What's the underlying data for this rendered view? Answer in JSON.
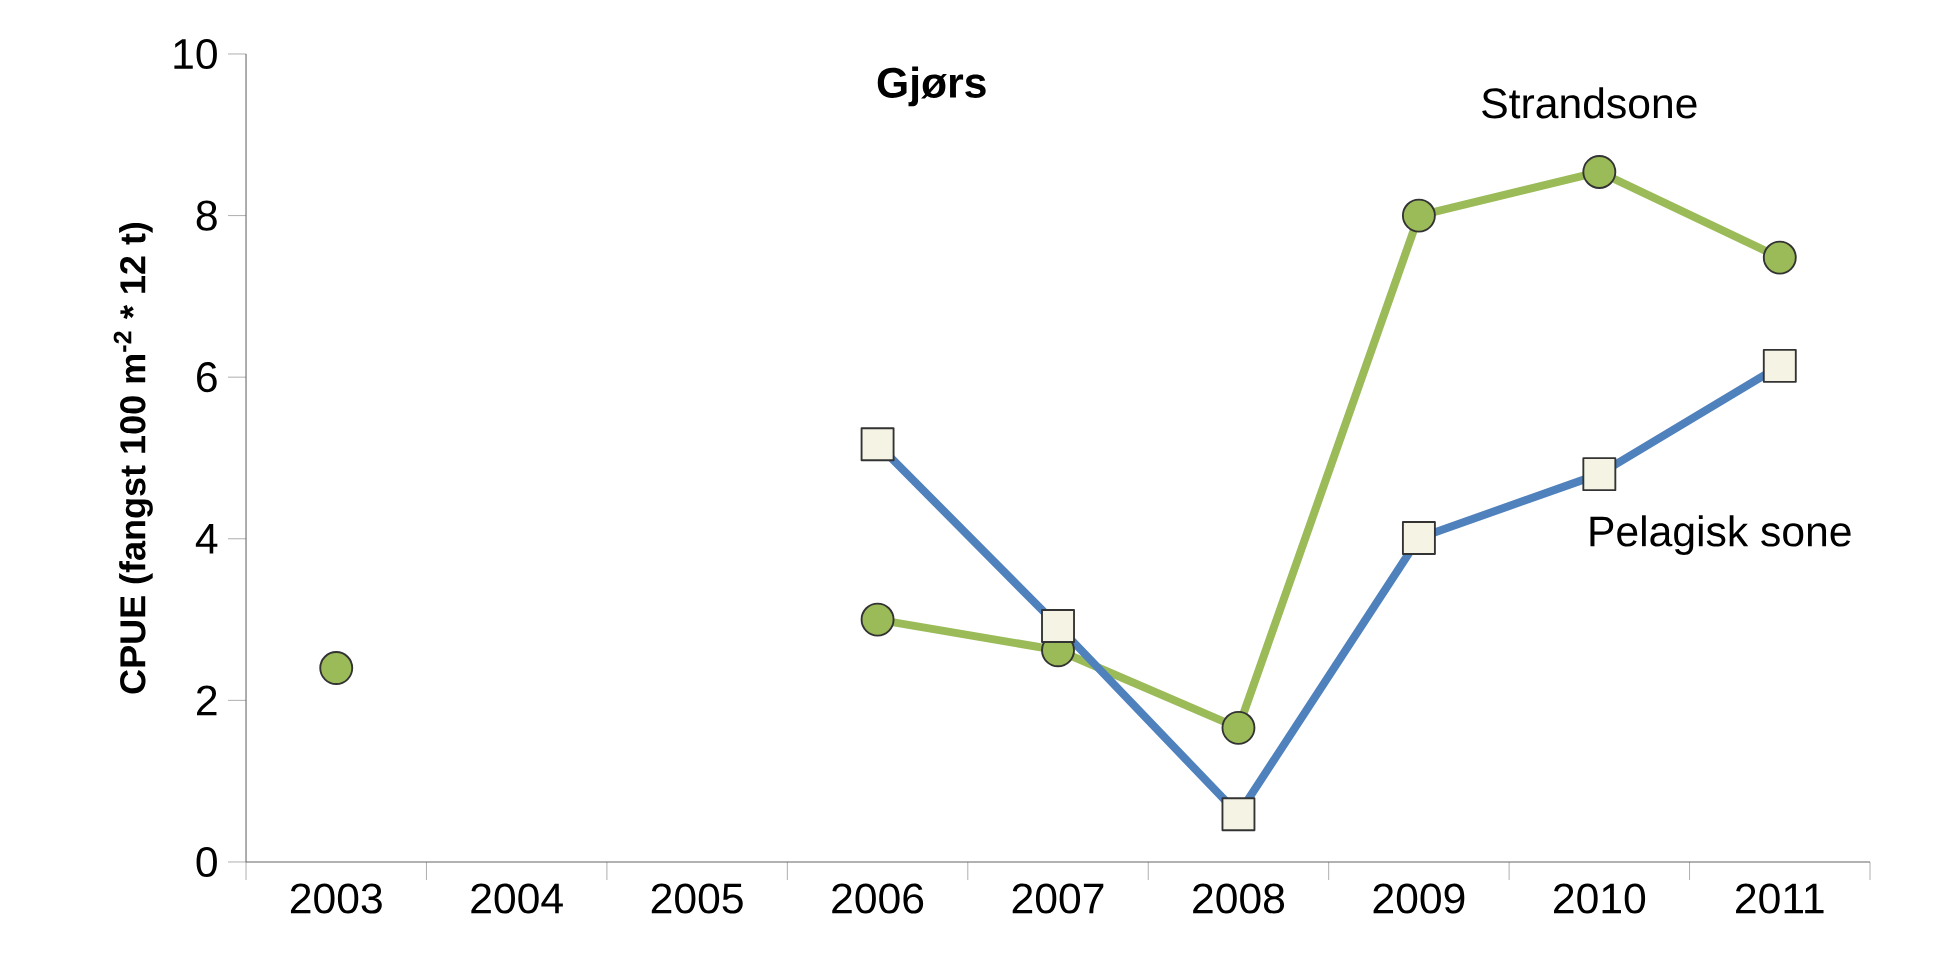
{
  "chart_data": {
    "type": "line",
    "title": "Gjørs",
    "ylabel": "CPUE (fangst 100 m$^{-2}$ * 12 t)",
    "categories": [
      "2003",
      "2004",
      "2005",
      "2006",
      "2007",
      "2008",
      "2009",
      "2010",
      "2011"
    ],
    "series": [
      {
        "name": "Strandsone",
        "color": "#9bbb59",
        "marker": "circle",
        "values": [
          2.4,
          null,
          null,
          3.0,
          2.62,
          1.66,
          8.0,
          8.54,
          7.48
        ]
      },
      {
        "name": "Pelagisk sone",
        "color": "#4f81bd",
        "marker": "square",
        "values": [
          null,
          null,
          null,
          5.17,
          2.92,
          0.59,
          4.01,
          4.8,
          6.14
        ]
      }
    ],
    "ylim": [
      0,
      10
    ],
    "yticks": [
      0,
      2,
      4,
      6,
      8,
      10
    ],
    "grid": false,
    "legend": false,
    "line_style": "solid"
  }
}
